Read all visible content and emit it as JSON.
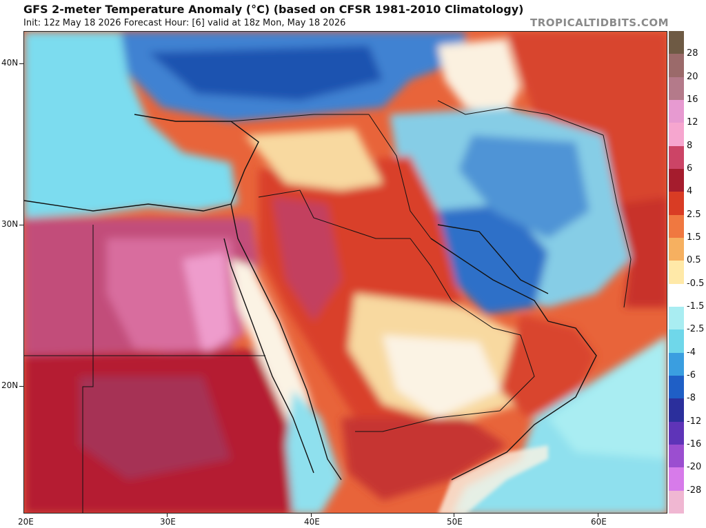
{
  "header": {
    "title": "GFS 2-meter Temperature Anomaly (°C) (based on CFSR 1981-2010 Climatology)",
    "subtitle": "Init: 12z May 18 2026   Forecast Hour: [6]   valid at 18z Mon, May 18 2026",
    "brand": "TROPICALTIDBITS.COM"
  },
  "map": {
    "lat_labels": [
      "40N",
      "30N",
      "20N"
    ],
    "lon_labels": [
      "20E",
      "30E",
      "40E",
      "50E",
      "60E"
    ]
  },
  "colorbar": {
    "labels": [
      "28",
      "20",
      "16",
      "12",
      "8",
      "6",
      "4",
      "2.5",
      "1.5",
      "0.5",
      "-0.5",
      "-1.5",
      "-2.5",
      "-4",
      "-6",
      "-8",
      "-12",
      "-16",
      "-20",
      "-28"
    ],
    "colors": [
      "#6e5a44",
      "#9b6a6a",
      "#b47a8a",
      "#e79ad1",
      "#f6a6cf",
      "#cc4466",
      "#a51c2d",
      "#d93c24",
      "#f07840",
      "#f6b060",
      "#ffe9a8",
      "#ffffff",
      "#a9edf2",
      "#6fd7ea",
      "#3a9ee0",
      "#1f5fc6",
      "#2b2f9c",
      "#5e34b8",
      "#9b4ed0",
      "#d77bea",
      "#f0b7d2"
    ]
  },
  "legend_colors": {
    "hot_strong": "#b84a72",
    "hot": "#c8302a",
    "warm": "#ef7b3d",
    "mild": "#f8d9a0",
    "neutral": "#fbf3e4",
    "cool": "#8fe0ee",
    "cold": "#2f6fc8"
  }
}
